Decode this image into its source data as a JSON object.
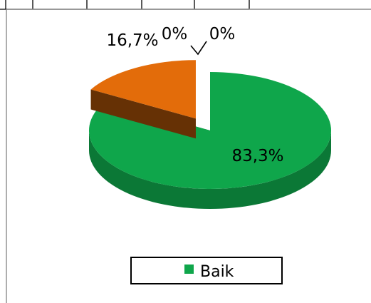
{
  "chart_data": {
    "type": "pie",
    "style": "3d-exploded",
    "categories": [
      "Baik",
      "",
      "",
      ""
    ],
    "values": [
      83.3,
      16.7,
      0,
      0
    ],
    "data_labels": [
      "83,3%",
      "16,7%",
      "0%",
      "0%"
    ],
    "colors": [
      "#0FA64B",
      "#E36C0A",
      "#7F7F7F",
      "#4F81BD"
    ],
    "legend": {
      "placement": "bottom",
      "entries": [
        {
          "label": "Baik",
          "color": "#0FA64B"
        }
      ]
    },
    "title": ""
  }
}
